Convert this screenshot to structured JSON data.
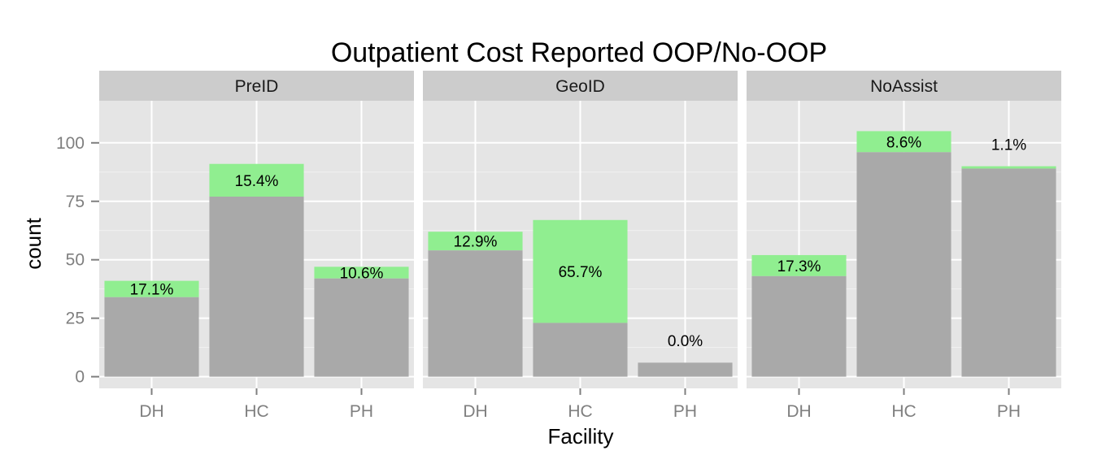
{
  "chart_data": {
    "type": "bar",
    "stacked": true,
    "title": "Outpatient Cost Reported OOP/No-OOP",
    "xlabel": "Facility",
    "ylabel": "count",
    "ylim": [
      -5,
      118
    ],
    "yticks": [
      0,
      25,
      50,
      75,
      100
    ],
    "grid": true,
    "legend": "none",
    "colors": {
      "base": "#a9a9a9",
      "top": "#90ee90",
      "panel_bg": "#e5e5e5",
      "strip_bg": "#cccccc",
      "grid": "#ffffff"
    },
    "categories": [
      "DH",
      "HC",
      "PH"
    ],
    "panels": [
      {
        "name": "PreID",
        "bars": [
          {
            "category": "DH",
            "total": 41,
            "base": 34,
            "label": "17.1%"
          },
          {
            "category": "HC",
            "total": 91,
            "base": 77,
            "label": "15.4%"
          },
          {
            "category": "PH",
            "total": 47,
            "base": 42,
            "label": "10.6%"
          }
        ]
      },
      {
        "name": "GeoID",
        "bars": [
          {
            "category": "DH",
            "total": 62,
            "base": 54,
            "label": "12.9%"
          },
          {
            "category": "HC",
            "total": 67,
            "base": 23,
            "label": "65.7%"
          },
          {
            "category": "PH",
            "total": 6,
            "base": 6,
            "label": "0.0%"
          }
        ]
      },
      {
        "name": "NoAssist",
        "bars": [
          {
            "category": "DH",
            "total": 52,
            "base": 43,
            "label": "17.3%"
          },
          {
            "category": "HC",
            "total": 105,
            "base": 96,
            "label": "8.6%"
          },
          {
            "category": "PH",
            "total": 90,
            "base": 89,
            "label": "1.1%"
          }
        ]
      }
    ]
  }
}
